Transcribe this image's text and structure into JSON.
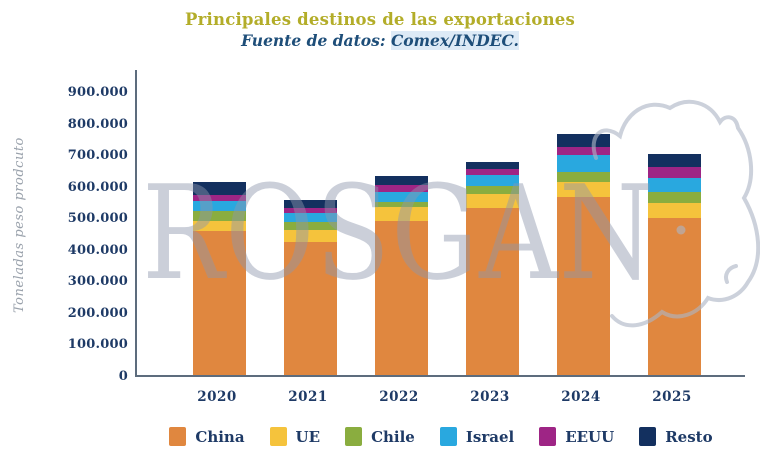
{
  "header": {
    "title": "Principales destinos de las exportaciones",
    "subtitle_prefix": "Fuente de datos: ",
    "subtitle_highlight": "Comex/INDEC."
  },
  "watermark": {
    "text": "ROSGAN"
  },
  "chart_data": {
    "type": "bar",
    "stacked": true,
    "title": "Principales destinos de las exportaciones",
    "subtitle": "Fuente de datos: Comex/INDEC.",
    "ylabel": "Toneladas peso prodcuto",
    "xlabel": "",
    "ylim": [
      0,
      900000
    ],
    "ytick_step": 100000,
    "ytick_labels": [
      "0",
      "100.000",
      "200.000",
      "300.000",
      "400.000",
      "500.000",
      "600.000",
      "700.000",
      "800.000",
      "900.000"
    ],
    "grid": false,
    "legend_position": "bottom",
    "categories": [
      "2020",
      "2021",
      "2022",
      "2023",
      "2024",
      "2025"
    ],
    "series": [
      {
        "name": "China",
        "color": "#E0873F",
        "values": [
          455000,
          420000,
          487000,
          530000,
          563000,
          498000
        ]
      },
      {
        "name": "UE",
        "color": "#F5C33C",
        "values": [
          34000,
          38000,
          45000,
          45000,
          49000,
          48000
        ]
      },
      {
        "name": "Chile",
        "color": "#8AAD3F",
        "values": [
          30000,
          28000,
          15000,
          23000,
          32000,
          35000
        ]
      },
      {
        "name": "Israel",
        "color": "#29A8DF",
        "values": [
          31000,
          26000,
          32000,
          37000,
          53000,
          42000
        ]
      },
      {
        "name": "EEUU",
        "color": "#9E2585",
        "values": [
          21000,
          18000,
          24000,
          18000,
          25000,
          36000
        ]
      },
      {
        "name": "Resto",
        "color": "#13305F",
        "values": [
          41000,
          24000,
          27000,
          21000,
          42000,
          42000
        ]
      }
    ]
  },
  "colors": {
    "title": "#b3ad29",
    "subtitle": "#1e4e79",
    "axis": "#5d6c7d",
    "tick_text": "#1e3a66",
    "watermark": "#8e97ad"
  }
}
